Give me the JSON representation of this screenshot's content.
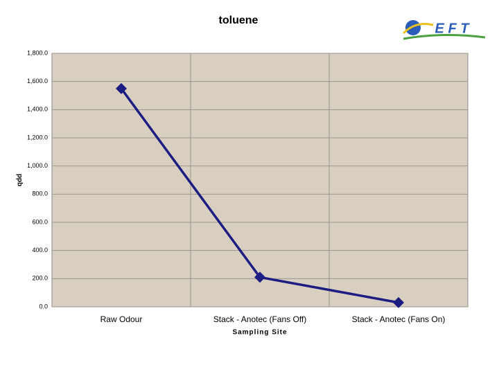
{
  "logo": "E F T",
  "chart_data": {
    "type": "line",
    "title": "toluene",
    "x_label": "Sampling Site",
    "y_label": "ppb",
    "categories": [
      "Raw Odour",
      "Stack - Anotec (Fans Off)",
      "Stack - Anotec (Fans On)"
    ],
    "series": [
      {
        "name": "toluene",
        "color": "#1c1c82",
        "values": [
          1550,
          210,
          30
        ]
      }
    ],
    "ylim": [
      0,
      1800
    ],
    "yticks": [
      {
        "value": 0,
        "label": "0.0"
      },
      {
        "value": 200,
        "label": "200.0"
      },
      {
        "value": 400,
        "label": "400.0"
      },
      {
        "value": 600,
        "label": "600.0"
      },
      {
        "value": 800,
        "label": "800.0"
      },
      {
        "value": 1000,
        "label": "1,000.0"
      },
      {
        "value": 1200,
        "label": "1,200.0"
      },
      {
        "value": 1400,
        "label": "1,400.0"
      },
      {
        "value": 1600,
        "label": "1,600.0"
      },
      {
        "value": 1800,
        "label": "1,800.0"
      }
    ],
    "grid": true
  }
}
